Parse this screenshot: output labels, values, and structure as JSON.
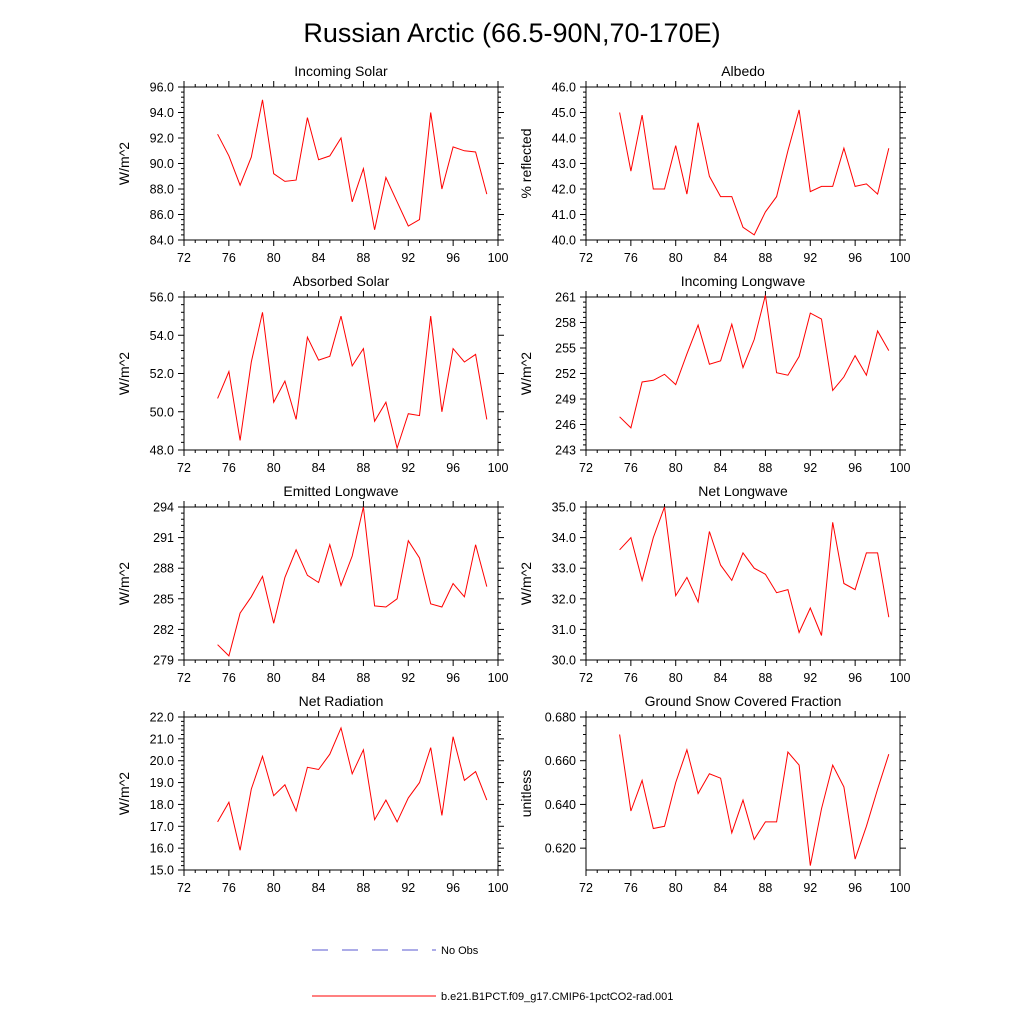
{
  "title": "Russian Arctic (66.5-90N,70-170E)",
  "legend": [
    {
      "label": "No Obs",
      "color": "#5a5ad2",
      "style": "dashed"
    },
    {
      "label": "b.e21.B1PCT.f09_g17.CMIP6-1pctCO2-rad.001",
      "color": "#ff0000",
      "style": "solid"
    }
  ],
  "chart_data": [
    {
      "type": "line",
      "title": "Incoming Solar",
      "ylabel": "W/m^2",
      "xlim": [
        72,
        100
      ],
      "xticks": [
        "72",
        "76",
        "80",
        "84",
        "88",
        "92",
        "96",
        "100"
      ],
      "ylim": [
        84,
        96
      ],
      "yticks": [
        "84.0",
        "86.0",
        "88.0",
        "90.0",
        "92.0",
        "94.0",
        "96.0"
      ],
      "x": [
        75,
        76,
        77,
        78,
        79,
        80,
        81,
        82,
        83,
        84,
        85,
        86,
        87,
        88,
        89,
        90,
        91,
        92,
        93,
        94,
        95,
        96,
        97,
        98,
        99
      ],
      "series": [
        {
          "name": "b.e21.B1PCT.f09_g17.CMIP6-1pctCO2-rad.001",
          "values": [
            92.3,
            90.6,
            88.3,
            90.5,
            95.0,
            89.2,
            88.6,
            88.7,
            93.6,
            90.3,
            90.6,
            92.0,
            87.0,
            89.6,
            84.8,
            88.9,
            87.0,
            85.1,
            85.6,
            94.0,
            88.0,
            91.3,
            91.0,
            90.9,
            87.6
          ]
        }
      ]
    },
    {
      "type": "line",
      "title": "Albedo",
      "ylabel": "% reflected",
      "xlim": [
        72,
        100
      ],
      "xticks": [
        "72",
        "76",
        "80",
        "84",
        "88",
        "92",
        "96",
        "100"
      ],
      "ylim": [
        40,
        46
      ],
      "yticks": [
        "40.0",
        "41.0",
        "42.0",
        "43.0",
        "44.0",
        "45.0",
        "46.0"
      ],
      "x": [
        75,
        76,
        77,
        78,
        79,
        80,
        81,
        82,
        83,
        84,
        85,
        86,
        87,
        88,
        89,
        90,
        91,
        92,
        93,
        94,
        95,
        96,
        97,
        98,
        99
      ],
      "series": [
        {
          "name": "b.e21.B1PCT.f09_g17.CMIP6-1pctCO2-rad.001",
          "values": [
            45.0,
            42.7,
            44.9,
            42.0,
            42.0,
            43.7,
            41.8,
            44.6,
            42.5,
            41.7,
            41.7,
            40.5,
            40.2,
            41.1,
            41.7,
            43.5,
            45.1,
            41.9,
            42.1,
            42.1,
            43.6,
            42.1,
            42.2,
            41.8,
            43.6
          ]
        }
      ]
    },
    {
      "type": "line",
      "title": "Absorbed Solar",
      "ylabel": "W/m^2",
      "xlim": [
        72,
        100
      ],
      "xticks": [
        "72",
        "76",
        "80",
        "84",
        "88",
        "92",
        "96",
        "100"
      ],
      "ylim": [
        48,
        56
      ],
      "yticks": [
        "48.0",
        "50.0",
        "52.0",
        "54.0",
        "56.0"
      ],
      "x": [
        75,
        76,
        77,
        78,
        79,
        80,
        81,
        82,
        83,
        84,
        85,
        86,
        87,
        88,
        89,
        90,
        91,
        92,
        93,
        94,
        95,
        96,
        97,
        98,
        99
      ],
      "series": [
        {
          "name": "b.e21.B1PCT.f09_g17.CMIP6-1pctCO2-rad.001",
          "values": [
            50.7,
            52.1,
            48.5,
            52.6,
            55.2,
            50.5,
            51.6,
            49.6,
            53.9,
            52.7,
            52.9,
            55.0,
            52.4,
            53.3,
            49.5,
            50.5,
            48.1,
            49.9,
            49.8,
            55.0,
            50.0,
            53.3,
            52.6,
            53.0,
            49.6
          ]
        }
      ]
    },
    {
      "type": "line",
      "title": "Incoming Longwave",
      "ylabel": "W/m^2",
      "xlim": [
        72,
        100
      ],
      "xticks": [
        "72",
        "76",
        "80",
        "84",
        "88",
        "92",
        "96",
        "100"
      ],
      "ylim": [
        243,
        261
      ],
      "yticks": [
        "243",
        "246",
        "249",
        "252",
        "255",
        "258",
        "261"
      ],
      "x": [
        75,
        76,
        77,
        78,
        79,
        80,
        81,
        82,
        83,
        84,
        85,
        86,
        87,
        88,
        89,
        90,
        91,
        92,
        93,
        94,
        95,
        96,
        97,
        98,
        99
      ],
      "series": [
        {
          "name": "b.e21.B1PCT.f09_g17.CMIP6-1pctCO2-rad.001",
          "values": [
            246.9,
            245.6,
            251.0,
            251.2,
            251.9,
            250.7,
            254.3,
            257.7,
            253.1,
            253.5,
            257.8,
            252.7,
            256.0,
            261.2,
            252.1,
            251.8,
            254.0,
            259.1,
            258.4,
            250.0,
            251.6,
            254.1,
            251.8,
            257.0,
            254.7
          ]
        }
      ]
    },
    {
      "type": "line",
      "title": "Emitted Longwave",
      "ylabel": "W/m^2",
      "xlim": [
        72,
        100
      ],
      "xticks": [
        "72",
        "76",
        "80",
        "84",
        "88",
        "92",
        "96",
        "100"
      ],
      "ylim": [
        279,
        294
      ],
      "yticks": [
        "279",
        "282",
        "285",
        "288",
        "291",
        "294"
      ],
      "x": [
        75,
        76,
        77,
        78,
        79,
        80,
        81,
        82,
        83,
        84,
        85,
        86,
        87,
        88,
        89,
        90,
        91,
        92,
        93,
        94,
        95,
        96,
        97,
        98,
        99
      ],
      "series": [
        {
          "name": "b.e21.B1PCT.f09_g17.CMIP6-1pctCO2-rad.001",
          "values": [
            280.5,
            279.4,
            283.6,
            285.2,
            287.2,
            282.6,
            287.1,
            289.8,
            287.3,
            286.6,
            290.3,
            286.3,
            289.2,
            294.0,
            284.3,
            284.2,
            285.0,
            290.7,
            289.0,
            284.5,
            284.2,
            286.5,
            285.2,
            290.3,
            286.2
          ]
        }
      ]
    },
    {
      "type": "line",
      "title": "Net Longwave",
      "ylabel": "W/m^2",
      "xlim": [
        72,
        100
      ],
      "xticks": [
        "72",
        "76",
        "80",
        "84",
        "88",
        "92",
        "96",
        "100"
      ],
      "ylim": [
        30,
        35
      ],
      "yticks": [
        "30.0",
        "31.0",
        "32.0",
        "33.0",
        "34.0",
        "35.0"
      ],
      "x": [
        75,
        76,
        77,
        78,
        79,
        80,
        81,
        82,
        83,
        84,
        85,
        86,
        87,
        88,
        89,
        90,
        91,
        92,
        93,
        94,
        95,
        96,
        97,
        98,
        99
      ],
      "series": [
        {
          "name": "b.e21.B1PCT.f09_g17.CMIP6-1pctCO2-rad.001",
          "values": [
            33.6,
            34.0,
            32.6,
            34.0,
            35.0,
            32.1,
            32.7,
            31.9,
            34.2,
            33.1,
            32.6,
            33.5,
            33.0,
            32.8,
            32.2,
            32.3,
            30.9,
            31.7,
            30.8,
            34.5,
            32.5,
            32.3,
            33.5,
            33.5,
            31.4
          ]
        }
      ]
    },
    {
      "type": "line",
      "title": "Net Radiation",
      "ylabel": "W/m^2",
      "xlim": [
        72,
        100
      ],
      "xticks": [
        "72",
        "76",
        "80",
        "84",
        "88",
        "92",
        "96",
        "100"
      ],
      "ylim": [
        15,
        22
      ],
      "yticks": [
        "15.0",
        "16.0",
        "17.0",
        "18.0",
        "19.0",
        "20.0",
        "21.0",
        "22.0"
      ],
      "x": [
        75,
        76,
        77,
        78,
        79,
        80,
        81,
        82,
        83,
        84,
        85,
        86,
        87,
        88,
        89,
        90,
        91,
        92,
        93,
        94,
        95,
        96,
        97,
        98,
        99
      ],
      "series": [
        {
          "name": "b.e21.B1PCT.f09_g17.CMIP6-1pctCO2-rad.001",
          "values": [
            17.2,
            18.1,
            15.9,
            18.7,
            20.2,
            18.4,
            18.9,
            17.7,
            19.7,
            19.6,
            20.3,
            21.5,
            19.4,
            20.5,
            17.3,
            18.2,
            17.2,
            18.3,
            19.0,
            20.6,
            17.5,
            21.1,
            19.1,
            19.5,
            18.2
          ]
        }
      ]
    },
    {
      "type": "line",
      "title": "Ground Snow Covered Fraction",
      "ylabel": "unitless",
      "xlim": [
        72,
        100
      ],
      "xticks": [
        "72",
        "76",
        "80",
        "84",
        "88",
        "92",
        "96",
        "100"
      ],
      "ylim": [
        0.61,
        0.68
      ],
      "yticks": [
        "0.620",
        "0.640",
        "0.660",
        "0.680"
      ],
      "ytick_values": [
        0.62,
        0.64,
        0.66,
        0.68
      ],
      "x": [
        75,
        76,
        77,
        78,
        79,
        80,
        81,
        82,
        83,
        84,
        85,
        86,
        87,
        88,
        89,
        90,
        91,
        92,
        93,
        94,
        95,
        96,
        97,
        98,
        99
      ],
      "series": [
        {
          "name": "b.e21.B1PCT.f09_g17.CMIP6-1pctCO2-rad.001",
          "values": [
            0.672,
            0.637,
            0.651,
            0.629,
            0.63,
            0.65,
            0.665,
            0.645,
            0.654,
            0.652,
            0.627,
            0.642,
            0.624,
            0.632,
            0.632,
            0.664,
            0.658,
            0.612,
            0.638,
            0.658,
            0.648,
            0.615,
            0.63,
            0.647,
            0.663
          ]
        }
      ]
    }
  ]
}
